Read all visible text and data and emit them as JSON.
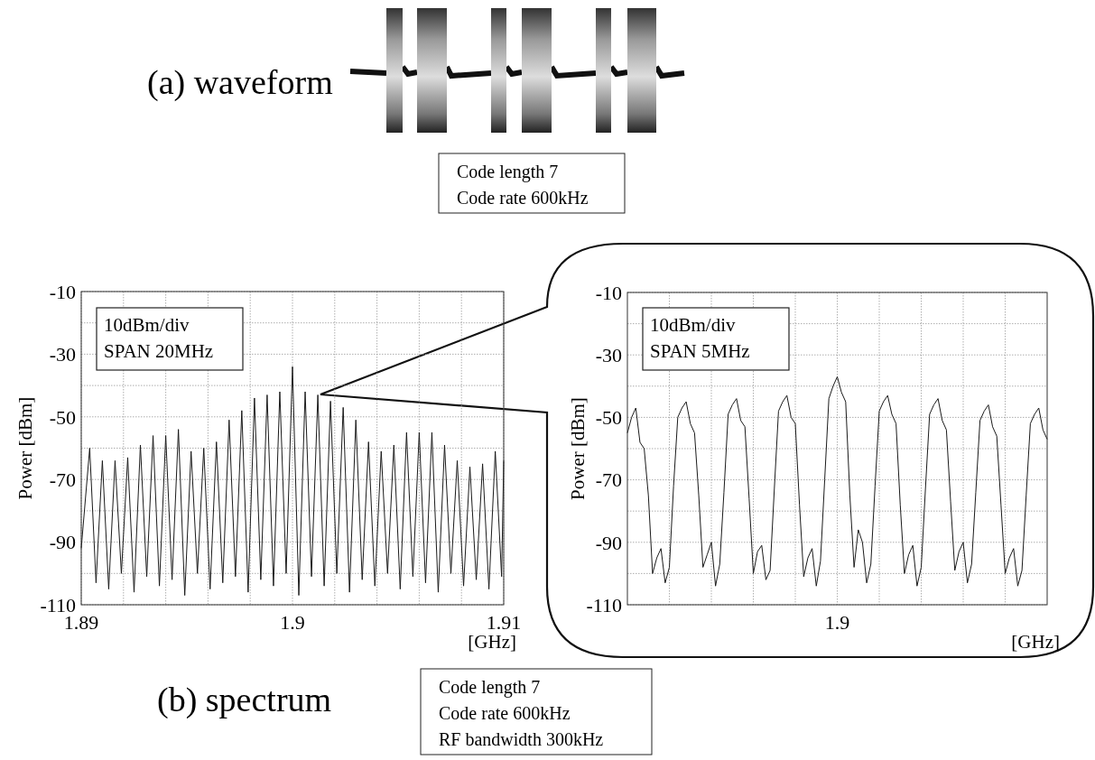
{
  "chart_data": [
    {
      "type": "line",
      "xlabel": "[GHz]",
      "ylabel": "Power [dBm]",
      "color": "#1a1a1a",
      "grid": true,
      "annotations": [
        "10dBm/div",
        "SPAN 20MHz",
        "(a) waveform",
        "Code length 7",
        "Code rate 600kHz",
        "(b) spectrum",
        "Code length 7",
        "Code rate 600kHz",
        "RF bandwidth 300kHz"
      ],
      "xlim": [
        1.89,
        1.91
      ],
      "ylim": [
        -110,
        -10
      ],
      "xticks": [
        1.89,
        {
          "value": 1.892,
          "label": null
        },
        {
          "value": 1.894,
          "label": null
        },
        {
          "value": 1.896,
          "label": null
        },
        {
          "value": 1.898,
          "label": null
        },
        1.9,
        {
          "value": 1.902,
          "label": null
        },
        {
          "value": 1.904,
          "label": null
        },
        {
          "value": 1.906,
          "label": null
        },
        {
          "value": 1.908,
          "label": null
        },
        1.91
      ],
      "yticks": [
        -110,
        {
          "value": -100,
          "label": null
        },
        -90,
        {
          "value": -80,
          "label": null
        },
        -70,
        {
          "value": -60,
          "label": null
        },
        -50,
        {
          "value": -40,
          "label": null
        },
        -30,
        {
          "value": -20,
          "label": null
        },
        -10
      ],
      "x": [
        1.89,
        1.8904,
        1.8907,
        1.891,
        1.8913,
        1.8916,
        1.8919,
        1.8922,
        1.8925,
        1.8928,
        1.8931,
        1.8934,
        1.8937,
        1.894,
        1.8943,
        1.8946,
        1.8949,
        1.8952,
        1.8955,
        1.8958,
        1.8961,
        1.8964,
        1.8967,
        1.897,
        1.8973,
        1.8976,
        1.8979,
        1.8982,
        1.8985,
        1.8988,
        1.8991,
        1.8994,
        1.8997,
        1.9,
        1.9003,
        1.9006,
        1.9009,
        1.9012,
        1.9015,
        1.9018,
        1.9021,
        1.9024,
        1.9027,
        1.903,
        1.9033,
        1.9036,
        1.9039,
        1.9042,
        1.9045,
        1.9048,
        1.9051,
        1.9054,
        1.9057,
        1.906,
        1.9063,
        1.9066,
        1.9069,
        1.9072,
        1.9075,
        1.9078,
        1.9081,
        1.9084,
        1.9087,
        1.909,
        1.9093,
        1.9096,
        1.9099,
        1.91
      ],
      "values": [
        -92,
        -60,
        -103,
        -64,
        -105,
        -64,
        -100,
        -63,
        -106,
        -59,
        -101,
        -56,
        -104,
        -56,
        -102,
        -54,
        -107,
        -61,
        -100,
        -60,
        -105,
        -58,
        -103,
        -51,
        -101,
        -48,
        -106,
        -44,
        -102,
        -43,
        -104,
        -42,
        -100,
        -34,
        -107,
        -42,
        -101,
        -43,
        -104,
        -45,
        -100,
        -47,
        -106,
        -51,
        -102,
        -58,
        -104,
        -61,
        -100,
        -59,
        -105,
        -55,
        -101,
        -55,
        -103,
        -55,
        -106,
        -59,
        -100,
        -64,
        -104,
        -66,
        -102,
        -65,
        -105,
        -61,
        -101,
        -64
      ]
    },
    {
      "type": "line",
      "xlabel": "[GHz]",
      "ylabel": "Power [dBm]",
      "color": "#1a1a1a",
      "grid": true,
      "annotations": [
        "10dBm/div",
        "SPAN 5MHz"
      ],
      "ylim": [
        -110,
        -10
      ],
      "yticks": [
        -110,
        {
          "value": -100,
          "label": null
        },
        -90,
        {
          "value": -80,
          "label": null
        },
        -70,
        {
          "value": -60,
          "label": null
        },
        -50,
        {
          "value": -40,
          "label": null
        },
        -30,
        {
          "value": -20,
          "label": null
        },
        -10
      ],
      "categories": [
        null,
        null,
        null,
        null,
        null,
        null,
        null,
        null,
        null,
        null,
        null,
        null,
        null,
        null,
        null,
        null,
        null,
        null,
        null,
        null,
        null,
        null,
        null,
        null,
        null,
        null,
        null,
        null,
        null,
        null,
        null,
        null,
        null,
        null,
        null,
        null,
        null,
        null,
        null,
        null,
        null,
        null,
        null,
        null,
        null,
        null,
        null,
        null,
        null,
        null,
        "1.9",
        null,
        null,
        null,
        null,
        null,
        null,
        null,
        null,
        null,
        null,
        null,
        null,
        null,
        null,
        null,
        null,
        null,
        null,
        null,
        null,
        null,
        null,
        null,
        null,
        null,
        null,
        null,
        null,
        null,
        null,
        null,
        null,
        null,
        null,
        null,
        null,
        null,
        null,
        null,
        null,
        null,
        null,
        null,
        null,
        null,
        null,
        null,
        null,
        null,
        null
      ],
      "values": [
        -55,
        -50,
        -47,
        -58,
        -60,
        -75,
        -100,
        -95,
        -92,
        -103,
        -98,
        -72,
        -50,
        -47,
        -45,
        -52,
        -55,
        -75,
        -98,
        -94,
        -90,
        -104,
        -97,
        -74,
        -49,
        -46,
        -44,
        -51,
        -53,
        -76,
        -100,
        -93,
        -91,
        -102,
        -99,
        -73,
        -48,
        -45,
        -43,
        -50,
        -52,
        -78,
        -101,
        -95,
        -92,
        -104,
        -96,
        -70,
        -44,
        -40,
        -37,
        -42,
        -45,
        -75,
        -98,
        -86,
        -90,
        -103,
        -97,
        -72,
        -48,
        -45,
        -43,
        -49,
        -52,
        -78,
        -100,
        -94,
        -91,
        -104,
        -98,
        -73,
        -49,
        -46,
        -44,
        -51,
        -54,
        -77,
        -99,
        -93,
        -90,
        -103,
        -97,
        -74,
        -51,
        -48,
        -46,
        -53,
        -56,
        -78,
        -100,
        -95,
        -92,
        -104,
        -99,
        -75,
        -52,
        -49,
        -47,
        -54,
        -57
      ]
    }
  ]
}
